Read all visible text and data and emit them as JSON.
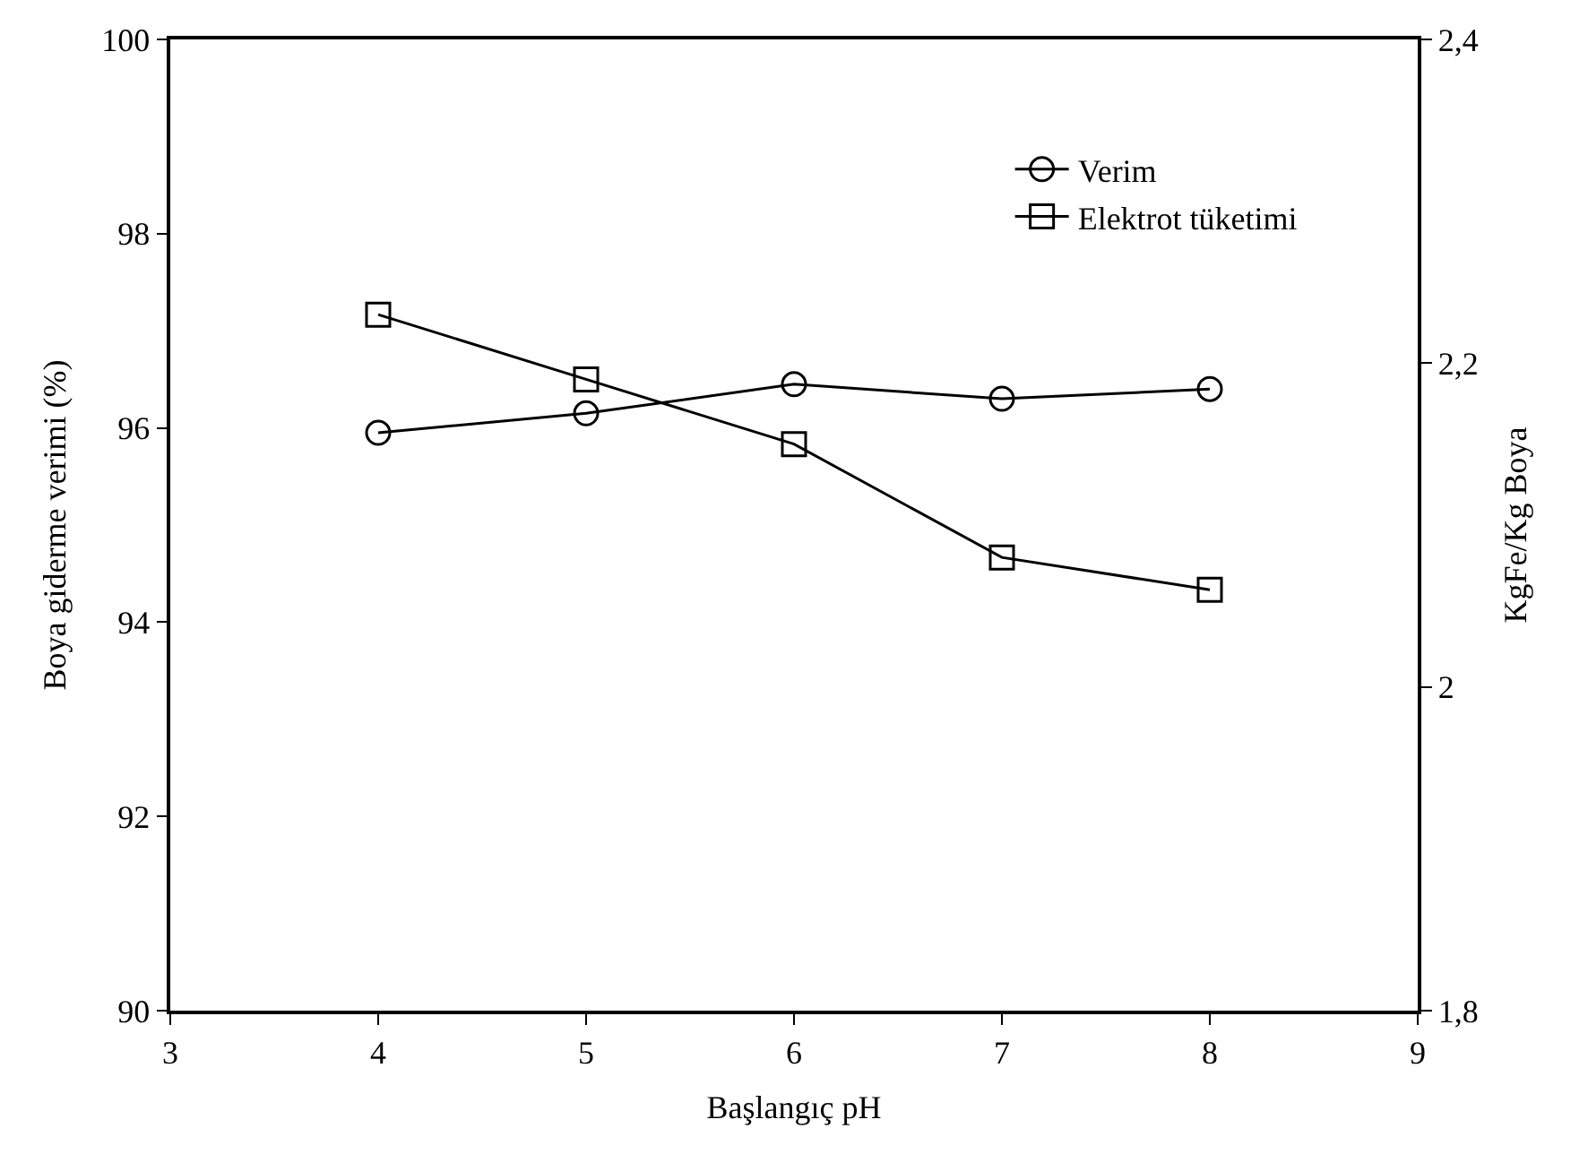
{
  "chart_data": {
    "type": "line",
    "x": [
      4,
      5,
      6,
      7,
      8
    ],
    "xlabel": "Başlangıç pH",
    "ylabel": "Boya giderme verimi (%)",
    "y2label": "KgFe/Kg Boya",
    "series": [
      {
        "name": "Verim",
        "color": "#000000",
        "values": [
          95.95,
          96.15,
          96.45,
          96.3,
          96.4
        ],
        "marker": "circle"
      },
      {
        "name": "Elektrot tüketimi",
        "color": "#000000",
        "values": [
          2.23,
          2.19,
          2.15,
          2.08,
          2.06
        ],
        "marker": "square",
        "axis": "y2"
      }
    ],
    "xlim": [
      3,
      9
    ],
    "xticks": [
      3,
      4,
      5,
      6,
      7,
      8,
      9
    ],
    "ylim": [
      90,
      100
    ],
    "yticks": [
      90,
      92,
      94,
      96,
      98,
      100
    ],
    "y2lim": [
      1.8,
      2.4
    ],
    "y2ticks": [
      {
        "value": 1.8,
        "label": "1,8"
      },
      {
        "value": 2.0,
        "label": "2"
      },
      {
        "value": 2.2,
        "label": "2,2"
      },
      {
        "value": 2.4,
        "label": "2,4"
      }
    ],
    "legend": "top right",
    "line_style": "solid"
  }
}
